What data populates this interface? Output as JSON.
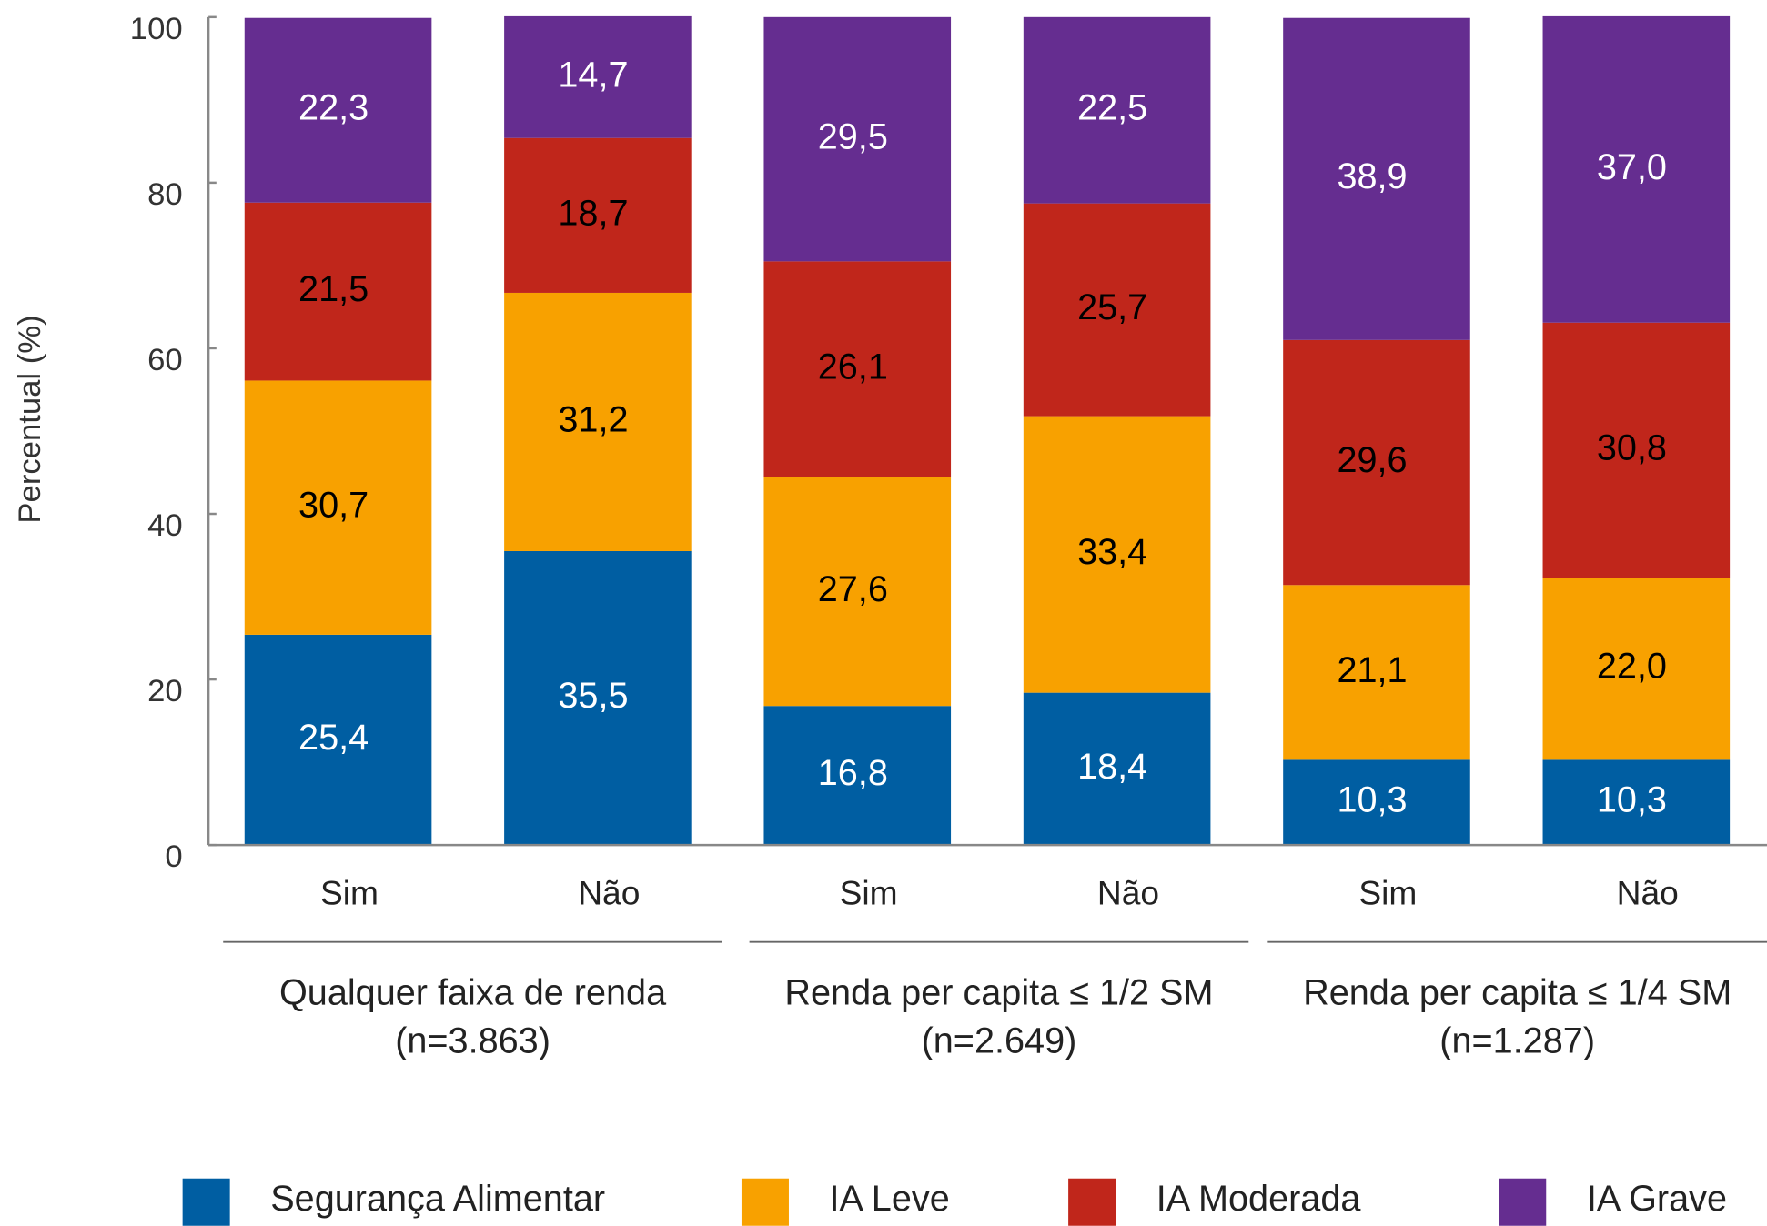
{
  "chart_data": {
    "type": "stacked_bar",
    "y_label": "Percentual (%)",
    "categories": [
      "Sim",
      "Não",
      "Sim",
      "Não",
      "Sim",
      "Não"
    ],
    "groups": [
      {
        "label": [
          "Qualquer faixa de renda",
          "(n=3.863)"
        ]
      },
      {
        "label": [
          "Renda per capita ≤ 1/2 SM",
          "(n=2.649)"
        ]
      },
      {
        "label": [
          "Renda per capita ≤ 1/4 SM",
          "(n=1.287)"
        ]
      }
    ],
    "series": [
      {
        "name": "Segurança Alimentar",
        "color": "#005ea2",
        "label_color": "#ffffff",
        "values": [
          25.4,
          35.5,
          16.8,
          18.4,
          10.3,
          10.3
        ],
        "value_labels": [
          "25,4",
          "35,5",
          "16,8",
          "18,4",
          "10,3",
          "10,3"
        ]
      },
      {
        "name": "IA Leve",
        "color": "#f8a100",
        "label_color": "#000000",
        "values": [
          30.7,
          31.2,
          27.6,
          33.4,
          21.1,
          22.0
        ],
        "value_labels": [
          "30,7",
          "31,2",
          "27,6",
          "33,4",
          "21,1",
          "22,0"
        ]
      },
      {
        "name": "IA Moderada",
        "color": "#c0261b",
        "label_color": "#000000",
        "values": [
          21.5,
          18.7,
          26.1,
          25.7,
          29.6,
          30.8
        ],
        "value_labels": [
          "21,5",
          "18,7",
          "26,1",
          "25,7",
          "29,6",
          "30,8"
        ]
      },
      {
        "name": "IA Grave",
        "color": "#652d90",
        "label_color": "#ffffff",
        "values": [
          22.3,
          14.7,
          29.5,
          22.5,
          38.9,
          37.0
        ],
        "value_labels": [
          "22,3",
          "14,7",
          "29,5",
          "22,5",
          "38,9",
          "37,0"
        ]
      }
    ],
    "ylim": [
      0,
      100
    ],
    "yticks": [
      0,
      20,
      40,
      60,
      80,
      100
    ]
  }
}
